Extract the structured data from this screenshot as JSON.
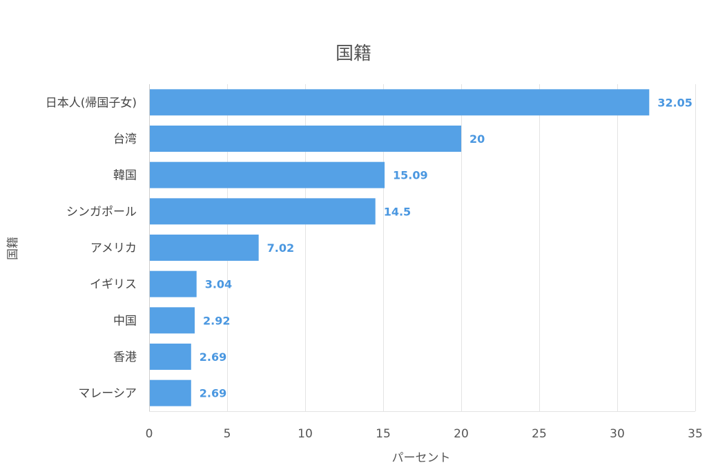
{
  "chart_data": {
    "type": "bar",
    "orientation": "horizontal",
    "title": "国籍",
    "xlabel": "パーセント",
    "ylabel": "国籍",
    "categories": [
      "日本人(帰国子女)",
      "台湾",
      "韓国",
      "シンガポール",
      "アメリカ",
      "イギリス",
      "中国",
      "香港",
      "マレーシア"
    ],
    "values": [
      32.05,
      20,
      15.09,
      14.5,
      7.02,
      3.04,
      2.92,
      2.69,
      2.69
    ],
    "value_labels": [
      "32.05",
      "20",
      "15.09",
      "14.5",
      "7.02",
      "3.04",
      "2.92",
      "2.69",
      "2.69"
    ],
    "xlim": [
      0,
      35
    ],
    "xticks": [
      0,
      5,
      10,
      15,
      20,
      25,
      30,
      35
    ],
    "xtick_labels": [
      "0",
      "5",
      "10",
      "15",
      "20",
      "25",
      "30",
      "35"
    ],
    "grid": true,
    "legend": false,
    "bar_color": "#55a1e6",
    "value_label_color": "#4a97e0"
  }
}
